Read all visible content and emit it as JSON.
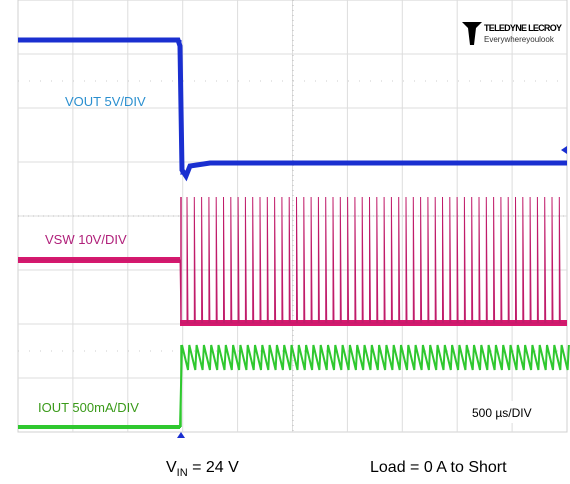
{
  "scope": {
    "channels": [
      {
        "label": "VOUT 5V/DIV"
      },
      {
        "label": "VSW 10V/DIV"
      },
      {
        "label": "IOUT 500mA/DIV"
      }
    ],
    "timebase": "500 µs/DIV",
    "logo": {
      "brand": "TELEDYNE LECROY",
      "tagline": "Everywhereyoulook"
    }
  },
  "caption": {
    "left": {
      "main": "V",
      "sub": "IN",
      "rest": " = 24 V"
    },
    "right": "Load = 0 A to Short"
  }
}
